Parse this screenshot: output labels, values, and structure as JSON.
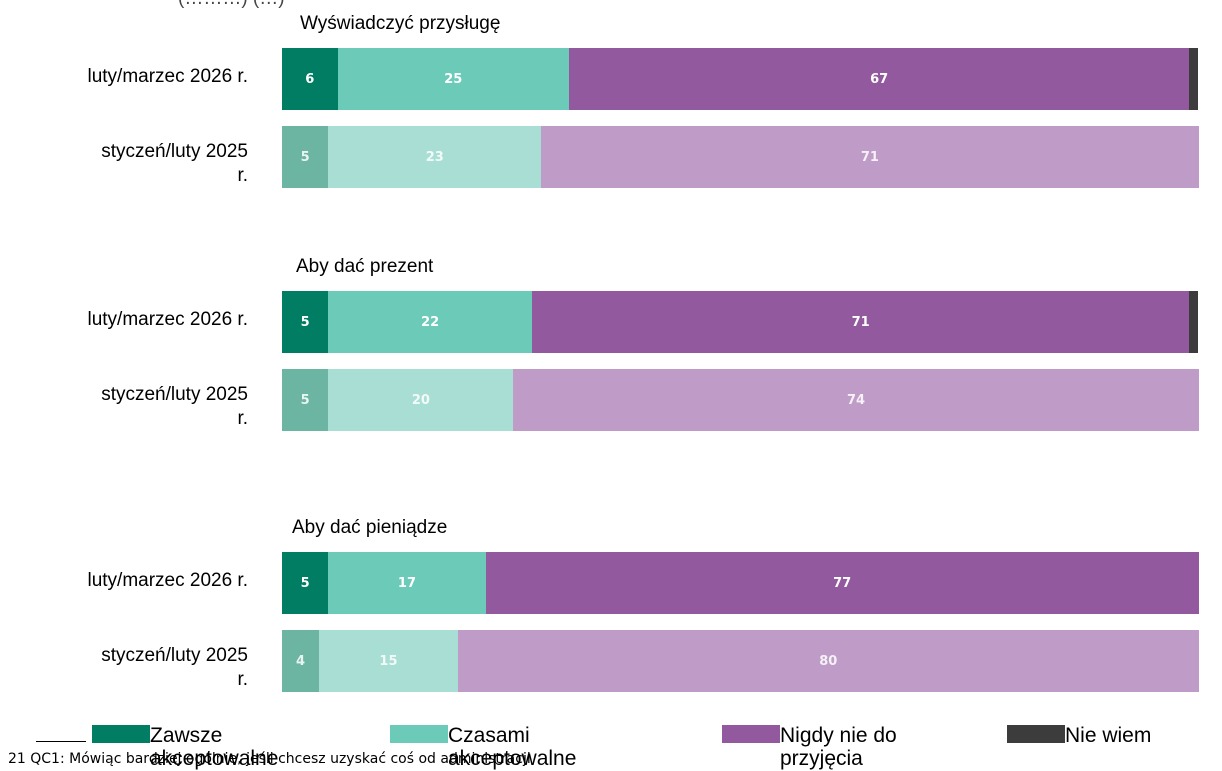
{
  "chart_data": {
    "type": "bar",
    "orientation": "horizontal",
    "stacked": true,
    "xlim": [
      0,
      100
    ],
    "legend_position": "bottom",
    "legend": [
      {
        "label_line1": "Zawsze",
        "label_line2": "akceptowalne",
        "color": "#007d63"
      },
      {
        "label_line1": "Czasami",
        "label_line2": "akceptowalne",
        "color": "#6ccab9"
      },
      {
        "label_line1": "Nigdy nie do",
        "label_line2": "przyjęcia",
        "color": "#92599e"
      },
      {
        "label_line1": "Nie wiem",
        "label_line2": "",
        "color": "#3c3c3c"
      }
    ],
    "groups": [
      {
        "title": "Wyświadczyć przysługę",
        "rows": [
          {
            "label_line1": "luty/marzec 2026 r.",
            "label_line2": "",
            "current": true,
            "values": [
              6,
              25,
              67,
              1
            ]
          },
          {
            "label_line1": "styczeń/luty 2025",
            "label_line2": "r.",
            "current": false,
            "values": [
              5,
              23,
              71,
              0
            ]
          }
        ]
      },
      {
        "title": "Aby dać prezent",
        "rows": [
          {
            "label_line1": "luty/marzec 2026 r.",
            "label_line2": "",
            "current": true,
            "values": [
              5,
              22,
              71,
              1
            ]
          },
          {
            "label_line1": "styczeń/luty 2025",
            "label_line2": "r.",
            "current": false,
            "values": [
              5,
              20,
              74,
              0
            ]
          }
        ]
      },
      {
        "title": "Aby dać pieniądze",
        "rows": [
          {
            "label_line1": "luty/marzec 2026 r.",
            "label_line2": "",
            "current": true,
            "values": [
              5,
              17,
              77,
              0
            ]
          },
          {
            "label_line1": "styczeń/luty 2025",
            "label_line2": "r.",
            "current": false,
            "values": [
              4,
              15,
              80,
              0
            ]
          }
        ]
      }
    ],
    "faded_colors": [
      "#6db5a3",
      "#a9ded4",
      "#bf9bc7",
      "#8a8a8a"
    ]
  },
  "header_fragment": "(………) (…)",
  "footnote": "21   QC1: Mówiąc bardziej ogólnie, jeśli chcesz uzyskać coś od administracji"
}
